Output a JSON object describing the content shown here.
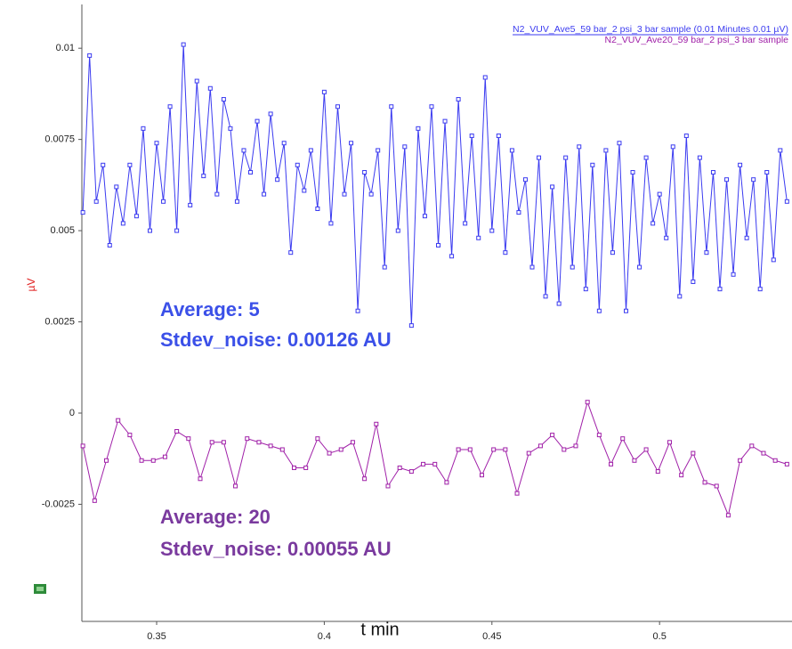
{
  "chart_data": {
    "type": "line",
    "xlabel": "t min",
    "ylabel": "µV",
    "ylabel_color": "#e02020",
    "xlim": [
      0.3277,
      0.5395
    ],
    "ylim": [
      -0.00571,
      0.0112
    ],
    "xticks": [
      0.35,
      0.4,
      0.45,
      0.5
    ],
    "yticks": [
      0.01,
      0.0075,
      0.005,
      0.0025,
      0,
      -0.0025
    ],
    "legend": "top-right",
    "series": [
      {
        "name": "N2_VUV_Ave5_59 bar_2 psi_3 bar sample (0.01 Minutes 0.01 µV)",
        "color": "#3b3bf0",
        "x": [
          0.328,
          0.33,
          0.332,
          0.334,
          0.336,
          0.338,
          0.34,
          0.342,
          0.344,
          0.346,
          0.348,
          0.35,
          0.352,
          0.354,
          0.356,
          0.358,
          0.36,
          0.362,
          0.364,
          0.366,
          0.368,
          0.37,
          0.372,
          0.374,
          0.376,
          0.378,
          0.38,
          0.382,
          0.384,
          0.386,
          0.388,
          0.39,
          0.392,
          0.394,
          0.396,
          0.398,
          0.4,
          0.402,
          0.404,
          0.406,
          0.408,
          0.41,
          0.412,
          0.414,
          0.416,
          0.418,
          0.42,
          0.422,
          0.424,
          0.426,
          0.428,
          0.43,
          0.432,
          0.434,
          0.436,
          0.438,
          0.44,
          0.442,
          0.444,
          0.446,
          0.448,
          0.45,
          0.452,
          0.454,
          0.456,
          0.458,
          0.46,
          0.462,
          0.464,
          0.466,
          0.468,
          0.47,
          0.472,
          0.474,
          0.476,
          0.478,
          0.48,
          0.482,
          0.484,
          0.486,
          0.488,
          0.49,
          0.492,
          0.494,
          0.496,
          0.498,
          0.5,
          0.502,
          0.504,
          0.506,
          0.508,
          0.51,
          0.512,
          0.514,
          0.516,
          0.518,
          0.52,
          0.522,
          0.524,
          0.526,
          0.528,
          0.53,
          0.532,
          0.534,
          0.536,
          0.538
        ],
        "values": [
          0.0055,
          0.0098,
          0.0058,
          0.0068,
          0.0046,
          0.0062,
          0.0052,
          0.0068,
          0.0054,
          0.0078,
          0.005,
          0.0074,
          0.0058,
          0.0084,
          0.005,
          0.0101,
          0.0057,
          0.0091,
          0.0065,
          0.0089,
          0.006,
          0.0086,
          0.0078,
          0.0058,
          0.0072,
          0.0066,
          0.008,
          0.006,
          0.0082,
          0.0064,
          0.0074,
          0.0044,
          0.0068,
          0.0061,
          0.0072,
          0.0056,
          0.0088,
          0.0052,
          0.0084,
          0.006,
          0.0074,
          0.0028,
          0.0066,
          0.006,
          0.0072,
          0.004,
          0.0084,
          0.005,
          0.0073,
          0.0024,
          0.0078,
          0.0054,
          0.0084,
          0.0046,
          0.008,
          0.0043,
          0.0086,
          0.0052,
          0.0076,
          0.0048,
          0.0092,
          0.005,
          0.0076,
          0.0044,
          0.0072,
          0.0055,
          0.0064,
          0.004,
          0.007,
          0.0032,
          0.0062,
          0.003,
          0.007,
          0.004,
          0.0073,
          0.0034,
          0.0068,
          0.0028,
          0.0072,
          0.0044,
          0.0074,
          0.0028,
          0.0066,
          0.004,
          0.007,
          0.0052,
          0.006,
          0.0048,
          0.0073,
          0.0032,
          0.0076,
          0.0036,
          0.007,
          0.0044,
          0.0066,
          0.0034,
          0.0064,
          0.0038,
          0.0068,
          0.0048,
          0.0064,
          0.0034,
          0.0066,
          0.0042,
          0.0072,
          0.0058
        ]
      },
      {
        "name": "N2_VUV_Ave20_59 bar_2 psi_3 bar sample",
        "color": "#a020a8",
        "x": [
          0.328,
          0.3315,
          0.335,
          0.3385,
          0.342,
          0.3455,
          0.349,
          0.3525,
          0.356,
          0.3595,
          0.363,
          0.3665,
          0.37,
          0.3735,
          0.377,
          0.3805,
          0.384,
          0.3875,
          0.391,
          0.3945,
          0.398,
          0.4015,
          0.405,
          0.4085,
          0.412,
          0.4155,
          0.419,
          0.4225,
          0.426,
          0.4295,
          0.433,
          0.4365,
          0.44,
          0.4435,
          0.447,
          0.4505,
          0.454,
          0.4575,
          0.461,
          0.4645,
          0.468,
          0.4715,
          0.475,
          0.4785,
          0.482,
          0.4855,
          0.489,
          0.4925,
          0.496,
          0.4995,
          0.503,
          0.5065,
          0.51,
          0.5135,
          0.517,
          0.5205,
          0.524,
          0.5275,
          0.531,
          0.5345,
          0.538
        ],
        "values": [
          -0.0009,
          -0.0024,
          -0.0013,
          -0.0002,
          -0.0006,
          -0.0013,
          -0.0013,
          -0.0012,
          -0.0005,
          -0.0007,
          -0.0018,
          -0.0008,
          -0.0008,
          -0.002,
          -0.0007,
          -0.0008,
          -0.0009,
          -0.001,
          -0.0015,
          -0.0015,
          -0.0007,
          -0.0011,
          -0.001,
          -0.0008,
          -0.0018,
          -0.0003,
          -0.002,
          -0.0015,
          -0.0016,
          -0.0014,
          -0.0014,
          -0.0019,
          -0.001,
          -0.001,
          -0.0017,
          -0.001,
          -0.001,
          -0.0022,
          -0.0011,
          -0.0009,
          -0.0006,
          -0.001,
          -0.0009,
          0.0003,
          -0.0006,
          -0.0014,
          -0.0007,
          -0.0013,
          -0.001,
          -0.0016,
          -0.0008,
          -0.0017,
          -0.0011,
          -0.0019,
          -0.002,
          -0.0028,
          -0.0013,
          -0.0009,
          -0.0011,
          -0.0013,
          -0.0014
        ]
      }
    ],
    "annotations": [
      {
        "text": "Average: 5",
        "color": "#3b50e8"
      },
      {
        "text": "Stdev_noise: 0.00126 AU",
        "color": "#3b50e8"
      },
      {
        "text": "Average: 20",
        "color": "#7a3a9e"
      },
      {
        "text": "Stdev_noise: 0.00055 AU",
        "color": "#7a3a9e"
      }
    ]
  }
}
